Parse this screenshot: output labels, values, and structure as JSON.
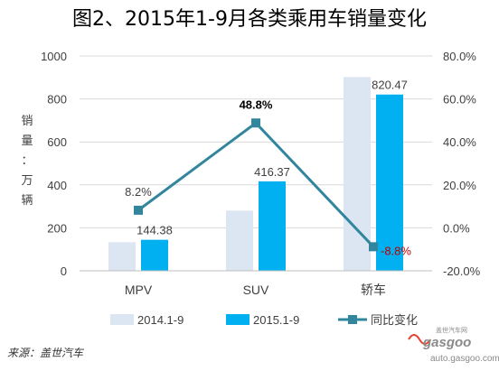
{
  "colors": {
    "series_2014": "#dce6f2",
    "series_2015": "#00b0f0",
    "line": "#31859c",
    "highlight_label": "#c00000",
    "axis": "#bfbfbf",
    "grid": "#d9d9d9",
    "logo_red": "#e8402f",
    "logo_gray": "#8a8a8a"
  },
  "source": "来源：盖世汽车",
  "watermark": {
    "logo_text": "gasgoo",
    "tagline": "盖世汽车网",
    "url": "auto.gasgoo.com"
  },
  "chart_data": {
    "type": "bar",
    "title": "图2、2015年1-9月各类乘用车销量变化",
    "categories": [
      "MPV",
      "SUV",
      "轿车"
    ],
    "ylabel": [
      "销",
      "量",
      "：",
      "万",
      "辆"
    ],
    "ylim": [
      0,
      1000
    ],
    "y_ticks": [
      0,
      200,
      400,
      600,
      800,
      1000
    ],
    "y2lim": [
      -20,
      80
    ],
    "y2_ticks": [
      "-20.0%",
      "0.0%",
      "20.0%",
      "40.0%",
      "60.0%",
      "80.0%"
    ],
    "grid": true,
    "legend_position": "bottom",
    "series": [
      {
        "name": "2014.1-9",
        "type": "bar",
        "axis": "left",
        "values": [
          133,
          280,
          902
        ],
        "labels": [
          "",
          "",
          ""
        ]
      },
      {
        "name": "2015.1-9",
        "type": "bar",
        "axis": "left",
        "values": [
          144.38,
          416.37,
          820.47
        ],
        "labels": [
          "144.38",
          "416.37",
          "820.47"
        ]
      },
      {
        "name": "同比变化",
        "type": "line",
        "axis": "right",
        "values": [
          8.2,
          48.8,
          -8.8
        ],
        "labels": [
          "8.2%",
          "48.8%",
          "-8.8%"
        ]
      }
    ]
  }
}
